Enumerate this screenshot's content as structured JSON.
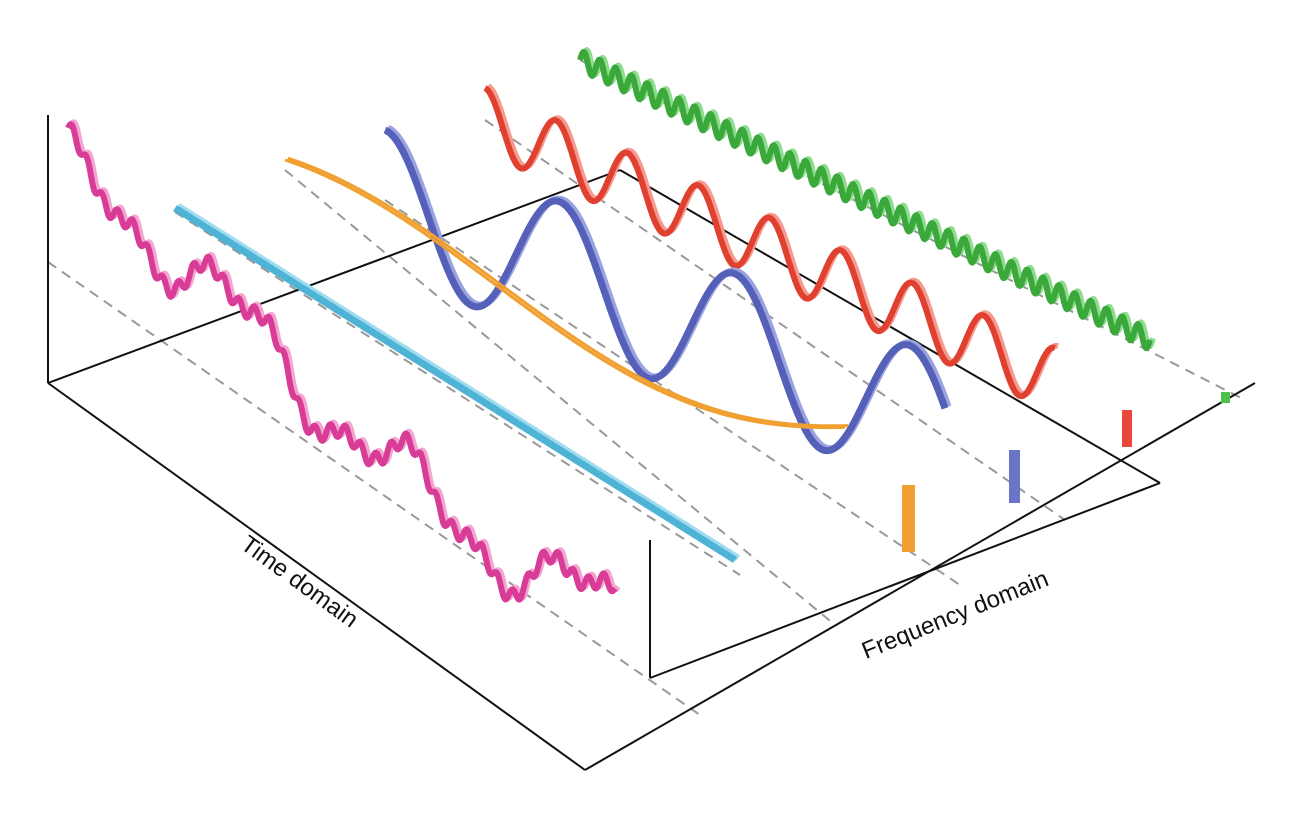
{
  "labels": {
    "time_axis": "Time domain",
    "frequency_axis": "Frequency domain"
  }
}
